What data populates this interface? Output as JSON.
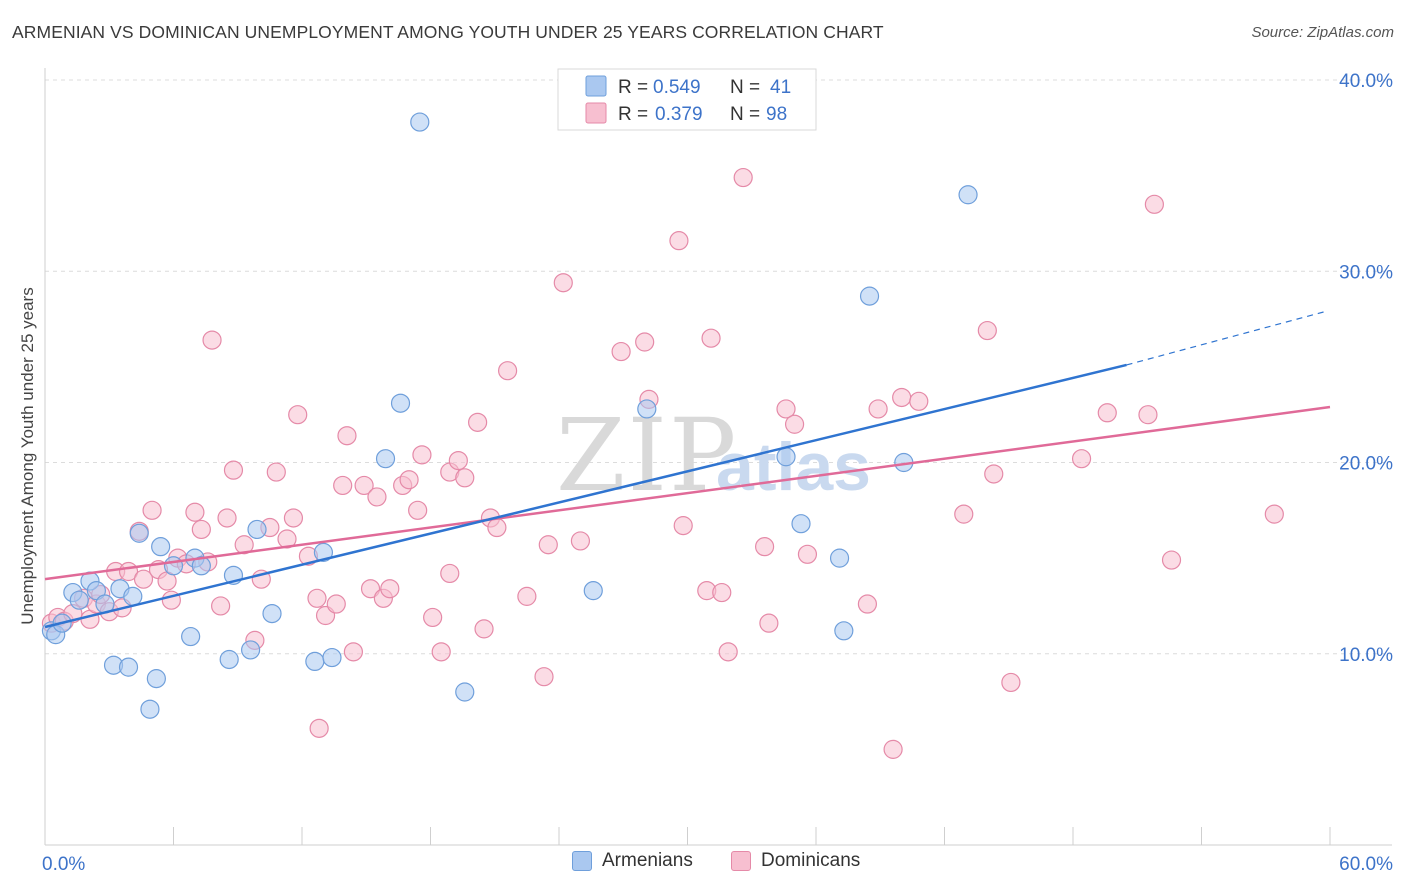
{
  "header": {
    "title": "ARMENIAN VS DOMINICAN UNEMPLOYMENT AMONG YOUTH UNDER 25 YEARS CORRELATION CHART",
    "source": "Source: ZipAtlas.com"
  },
  "watermark": {
    "part1": "ZIP",
    "part2": "atlas"
  },
  "colors": {
    "armenians_fill": "#aac8f0",
    "armenians_stroke": "#6f9fdb",
    "armenians_line": "#2f74d0",
    "dominicans_fill": "#f7bfd0",
    "dominicans_stroke": "#e58aa8",
    "dominicans_line": "#e06a98",
    "axis_text": "#3d73c9"
  },
  "legend_top": {
    "rows": [
      {
        "r_label": "R =",
        "r_value": "0.549",
        "n_label": "N =",
        "n_value": "41"
      },
      {
        "r_label": "R =",
        "r_value": "0.379",
        "n_label": "N =",
        "n_value": "98"
      }
    ]
  },
  "legend_bottom": {
    "items": [
      "Armenians",
      "Dominicans"
    ]
  },
  "chart_data": {
    "type": "scatter",
    "title": "ARMENIAN VS DOMINICAN UNEMPLOYMENT AMONG YOUTH UNDER 25 YEARS CORRELATION CHART",
    "xlabel": "",
    "ylabel": "Unemployment Among Youth under 25 years",
    "xlim": [
      0,
      60
    ],
    "ylim": [
      0,
      40
    ],
    "x_ticks": [
      0,
      60
    ],
    "x_tick_labels": [
      "0.0%",
      "60.0%"
    ],
    "y_ticks": [
      10,
      20,
      30,
      40
    ],
    "y_tick_labels": [
      "10.0%",
      "20.0%",
      "30.0%",
      "40.0%"
    ],
    "grid": true,
    "legend_position": "top-center",
    "series": [
      {
        "name": "Armenians",
        "R": 0.549,
        "N": 41,
        "trend": {
          "x0": 0,
          "y0": 11.4,
          "x1": 50.5,
          "y1": 25.1,
          "dashed_to_x": 59.8,
          "dashed_to_y": 27.9
        },
        "points": [
          [
            0.3,
            11.2
          ],
          [
            0.5,
            11.0
          ],
          [
            0.8,
            11.6
          ],
          [
            1.3,
            13.2
          ],
          [
            1.6,
            12.8
          ],
          [
            2.1,
            13.8
          ],
          [
            2.4,
            13.3
          ],
          [
            2.8,
            12.6
          ],
          [
            3.2,
            9.4
          ],
          [
            3.5,
            13.4
          ],
          [
            3.9,
            9.3
          ],
          [
            4.1,
            13.0
          ],
          [
            4.4,
            16.3
          ],
          [
            4.9,
            7.1
          ],
          [
            5.2,
            8.7
          ],
          [
            5.4,
            15.6
          ],
          [
            6.0,
            14.6
          ],
          [
            6.8,
            10.9
          ],
          [
            7.0,
            15.0
          ],
          [
            7.3,
            14.6
          ],
          [
            8.6,
            9.7
          ],
          [
            8.8,
            14.1
          ],
          [
            9.6,
            10.2
          ],
          [
            9.9,
            16.5
          ],
          [
            10.6,
            12.1
          ],
          [
            12.6,
            9.6
          ],
          [
            13.0,
            15.3
          ],
          [
            13.4,
            9.8
          ],
          [
            15.9,
            20.2
          ],
          [
            16.6,
            23.1
          ],
          [
            17.5,
            37.8
          ],
          [
            19.6,
            8.0
          ],
          [
            25.6,
            13.3
          ],
          [
            28.1,
            22.8
          ],
          [
            34.6,
            20.3
          ],
          [
            35.3,
            16.8
          ],
          [
            37.1,
            15.0
          ],
          [
            37.3,
            11.2
          ],
          [
            38.5,
            28.7
          ],
          [
            40.1,
            20.0
          ],
          [
            43.1,
            34.0
          ]
        ]
      },
      {
        "name": "Dominicans",
        "R": 0.379,
        "N": 98,
        "trend": {
          "x0": 0,
          "y0": 13.9,
          "x1": 60,
          "y1": 22.9
        },
        "points": [
          [
            0.3,
            11.6
          ],
          [
            0.6,
            11.9
          ],
          [
            0.9,
            11.7
          ],
          [
            1.3,
            12.1
          ],
          [
            1.8,
            12.9
          ],
          [
            2.1,
            11.8
          ],
          [
            2.4,
            12.6
          ],
          [
            2.6,
            13.1
          ],
          [
            3.0,
            12.2
          ],
          [
            3.3,
            14.3
          ],
          [
            3.6,
            12.4
          ],
          [
            3.9,
            14.3
          ],
          [
            4.4,
            16.4
          ],
          [
            4.6,
            13.9
          ],
          [
            5.0,
            17.5
          ],
          [
            5.3,
            14.4
          ],
          [
            5.7,
            13.8
          ],
          [
            5.9,
            12.8
          ],
          [
            6.2,
            15.0
          ],
          [
            6.6,
            14.7
          ],
          [
            7.0,
            17.4
          ],
          [
            7.3,
            16.5
          ],
          [
            7.6,
            14.8
          ],
          [
            7.8,
            26.4
          ],
          [
            8.2,
            12.5
          ],
          [
            8.5,
            17.1
          ],
          [
            8.8,
            19.6
          ],
          [
            9.3,
            15.7
          ],
          [
            9.8,
            10.7
          ],
          [
            10.1,
            13.9
          ],
          [
            10.5,
            16.6
          ],
          [
            10.8,
            19.5
          ],
          [
            11.3,
            16.0
          ],
          [
            11.6,
            17.1
          ],
          [
            11.8,
            22.5
          ],
          [
            12.3,
            15.1
          ],
          [
            12.7,
            12.9
          ],
          [
            12.8,
            6.1
          ],
          [
            13.1,
            12.0
          ],
          [
            13.6,
            12.6
          ],
          [
            13.9,
            18.8
          ],
          [
            14.1,
            21.4
          ],
          [
            14.4,
            10.1
          ],
          [
            14.9,
            18.8
          ],
          [
            15.2,
            13.4
          ],
          [
            15.5,
            18.2
          ],
          [
            15.8,
            12.9
          ],
          [
            16.1,
            13.4
          ],
          [
            16.7,
            18.8
          ],
          [
            17.0,
            19.1
          ],
          [
            17.4,
            17.5
          ],
          [
            17.6,
            20.4
          ],
          [
            18.1,
            11.9
          ],
          [
            18.5,
            10.1
          ],
          [
            18.9,
            14.2
          ],
          [
            18.9,
            19.5
          ],
          [
            19.3,
            20.1
          ],
          [
            19.6,
            19.2
          ],
          [
            20.2,
            22.1
          ],
          [
            20.5,
            11.3
          ],
          [
            20.8,
            17.1
          ],
          [
            21.1,
            16.6
          ],
          [
            21.6,
            24.8
          ],
          [
            22.5,
            13.0
          ],
          [
            23.3,
            8.8
          ],
          [
            23.5,
            15.7
          ],
          [
            24.2,
            29.4
          ],
          [
            25.0,
            15.9
          ],
          [
            26.9,
            25.8
          ],
          [
            28.0,
            26.3
          ],
          [
            28.2,
            23.3
          ],
          [
            29.6,
            31.6
          ],
          [
            29.8,
            16.7
          ],
          [
            30.9,
            13.3
          ],
          [
            31.1,
            26.5
          ],
          [
            31.6,
            13.2
          ],
          [
            31.9,
            10.1
          ],
          [
            32.6,
            34.9
          ],
          [
            33.6,
            15.6
          ],
          [
            33.8,
            11.6
          ],
          [
            34.6,
            22.8
          ],
          [
            35.0,
            22.0
          ],
          [
            35.6,
            15.2
          ],
          [
            38.4,
            12.6
          ],
          [
            38.9,
            22.8
          ],
          [
            39.6,
            5.0
          ],
          [
            40.0,
            23.4
          ],
          [
            40.8,
            23.2
          ],
          [
            42.9,
            17.3
          ],
          [
            44.0,
            26.9
          ],
          [
            44.3,
            19.4
          ],
          [
            45.1,
            8.5
          ],
          [
            48.4,
            20.2
          ],
          [
            49.6,
            22.6
          ],
          [
            51.5,
            22.5
          ],
          [
            51.8,
            33.5
          ],
          [
            52.6,
            14.9
          ],
          [
            57.4,
            17.3
          ]
        ]
      }
    ]
  }
}
